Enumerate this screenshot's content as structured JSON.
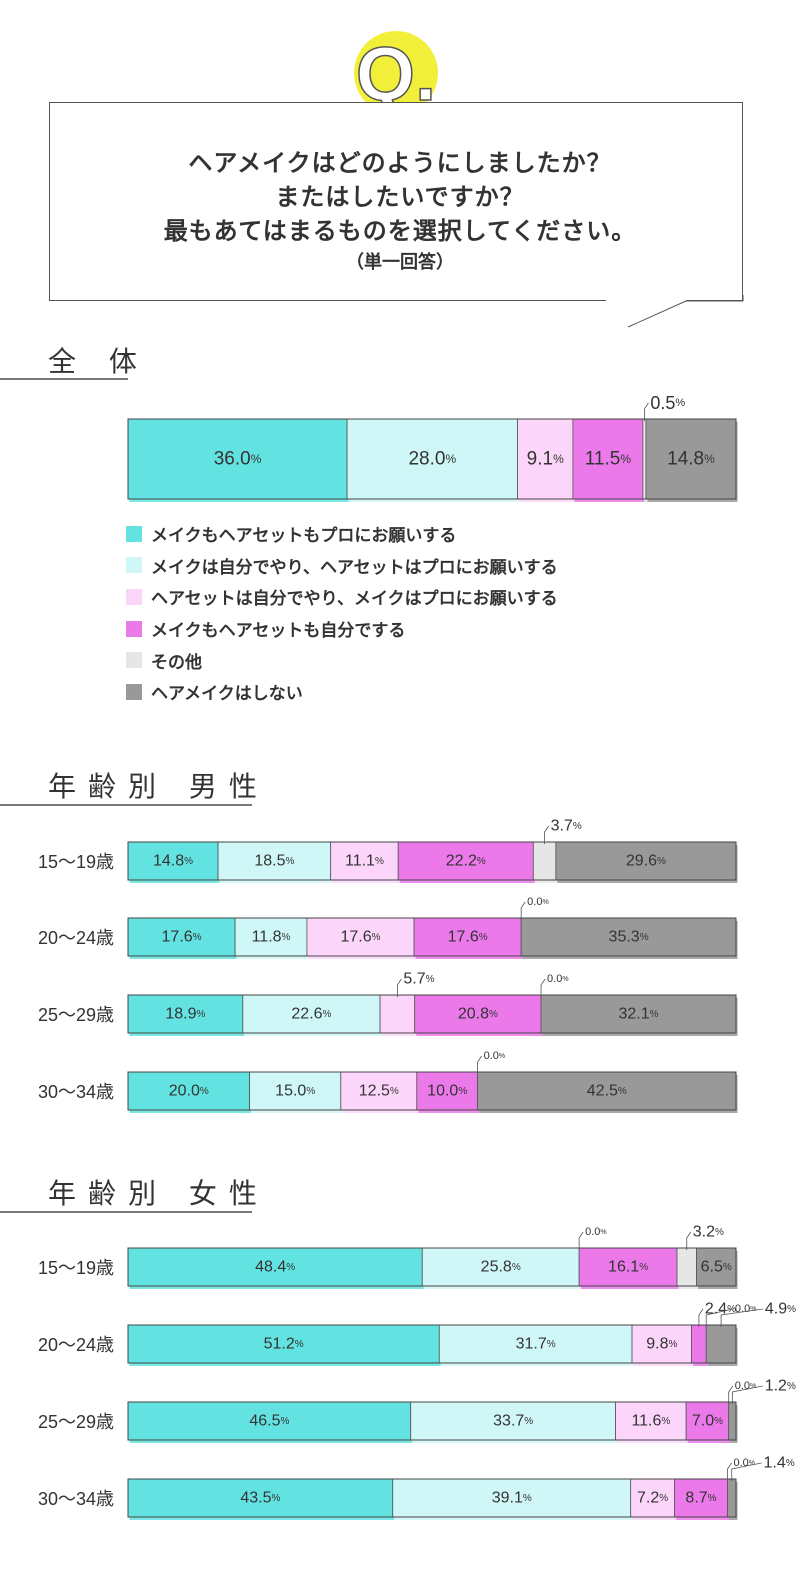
{
  "question": {
    "badge": "Q.",
    "lines": [
      "ヘアメイクはどのようにしましたか？",
      "またはしたいですか？",
      "最もあてはまるものを選択してください。"
    ],
    "note": "（単一回答）"
  },
  "sections": {
    "overall": "全 体",
    "male": "年齢別 男性",
    "female": "年齢別 女性"
  },
  "colors": {
    "series": [
      "#62e3e1",
      "#d0f7f7",
      "#fcd6fa",
      "#ec79ea",
      "#e6e6e6",
      "#999999"
    ],
    "accent_yellow": "#f2ef3a"
  },
  "legend": [
    "メイクもヘアセットもプロにお願いする",
    "メイクは自分でやり、ヘアセットはプロにお願いする",
    "ヘアセットは自分でやり、メイクはプロにお願いする",
    "メイクもヘアセットも自分でする",
    "その他",
    "ヘアメイクはしない"
  ],
  "chart_data": [
    {
      "type": "bar",
      "stacked": true,
      "orientation": "horizontal",
      "group": "overall",
      "categories": [
        ""
      ],
      "unit": "%",
      "series": [
        {
          "name": "メイクもヘアセットもプロにお願いする",
          "values": [
            36.0
          ]
        },
        {
          "name": "メイクは自分でやり、ヘアセットはプロにお願いする",
          "values": [
            28.0
          ]
        },
        {
          "name": "ヘアセットは自分でやり、メイクはプロにお願いする",
          "values": [
            9.1
          ]
        },
        {
          "name": "メイクもヘアセットも自分でする",
          "values": [
            11.5
          ]
        },
        {
          "name": "その他",
          "values": [
            0.5
          ]
        },
        {
          "name": "ヘアメイクはしない",
          "values": [
            14.8
          ]
        }
      ]
    },
    {
      "type": "bar",
      "stacked": true,
      "orientation": "horizontal",
      "group": "male",
      "categories": [
        "15〜19歳",
        "20〜24歳",
        "25〜29歳",
        "30〜34歳"
      ],
      "unit": "%",
      "series": [
        {
          "name": "メイクもヘアセットもプロにお願いする",
          "values": [
            14.8,
            17.6,
            18.9,
            20.0
          ]
        },
        {
          "name": "メイクは自分でやり、ヘアセットはプロにお願いする",
          "values": [
            18.5,
            11.8,
            22.6,
            15.0
          ]
        },
        {
          "name": "ヘアセットは自分でやり、メイクはプロにお願いする",
          "values": [
            11.1,
            17.6,
            5.7,
            12.5
          ]
        },
        {
          "name": "メイクもヘアセットも自分でする",
          "values": [
            22.2,
            17.6,
            20.8,
            10.0
          ]
        },
        {
          "name": "その他",
          "values": [
            3.7,
            0.0,
            0.0,
            0.0
          ]
        },
        {
          "name": "ヘアメイクはしない",
          "values": [
            29.6,
            35.3,
            32.1,
            42.5
          ]
        }
      ]
    },
    {
      "type": "bar",
      "stacked": true,
      "orientation": "horizontal",
      "group": "female",
      "categories": [
        "15〜19歳",
        "20〜24歳",
        "25〜29歳",
        "30〜34歳"
      ],
      "unit": "%",
      "series": [
        {
          "name": "メイクもヘアセットもプロにお願いする",
          "values": [
            48.4,
            51.2,
            46.5,
            43.5
          ]
        },
        {
          "name": "メイクは自分でやり、ヘアセットはプロにお願いする",
          "values": [
            25.8,
            31.7,
            33.7,
            39.1
          ]
        },
        {
          "name": "ヘアセットは自分でやり、メイクはプロにお願いする",
          "values": [
            0.0,
            9.8,
            11.6,
            7.2
          ]
        },
        {
          "name": "メイクもヘアセットも自分でする",
          "values": [
            16.1,
            2.4,
            7.0,
            8.7
          ]
        },
        {
          "name": "その他",
          "values": [
            3.2,
            0.0,
            0.0,
            0.0
          ]
        },
        {
          "name": "ヘアメイクはしない",
          "values": [
            6.5,
            4.9,
            1.2,
            1.4
          ]
        }
      ]
    }
  ]
}
